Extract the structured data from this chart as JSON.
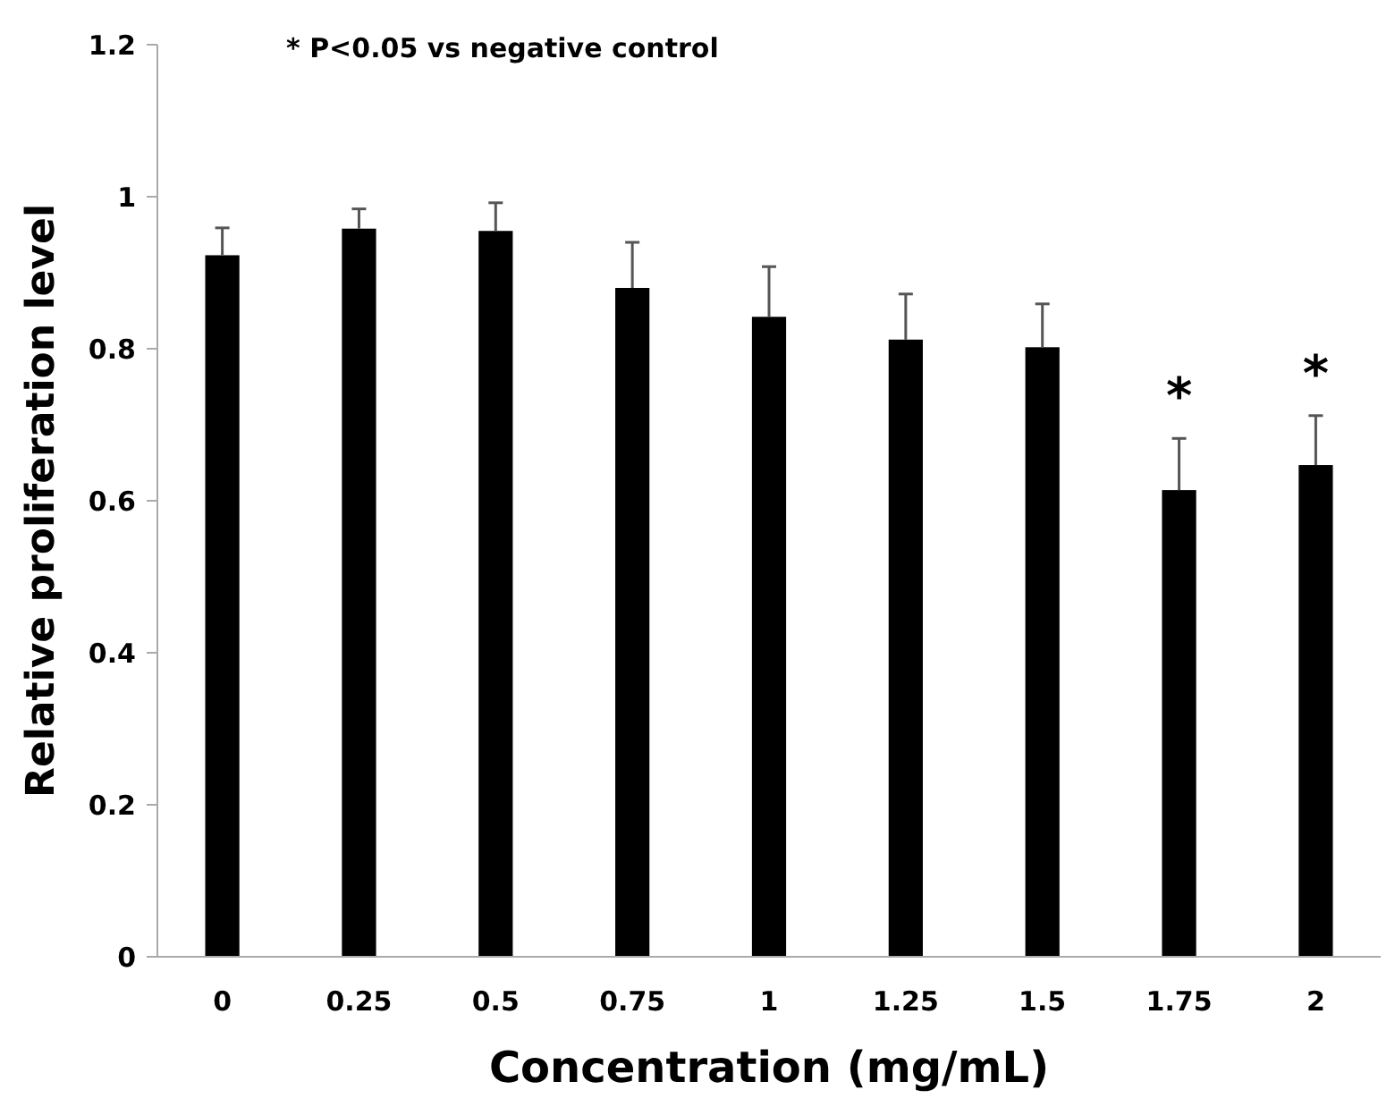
{
  "chart_data": {
    "type": "bar",
    "xlabel": "Concentration (mg/mL)",
    "ylabel": "Relative proliferation level",
    "categories": [
      "0",
      "0.25",
      "0.5",
      "0.75",
      "1",
      "1.25",
      "1.5",
      "1.75",
      "2"
    ],
    "values": [
      0.923,
      0.958,
      0.955,
      0.88,
      0.842,
      0.812,
      0.802,
      0.614,
      0.647
    ],
    "errors": [
      0.036,
      0.026,
      0.037,
      0.06,
      0.066,
      0.06,
      0.057,
      0.068,
      0.065
    ],
    "color": "#000000",
    "ylim": [
      0,
      1.2
    ],
    "yticks": [
      0,
      0.2,
      0.4,
      0.6,
      0.8,
      1,
      1.2
    ],
    "annotations": [
      "* P<0.05 vs negative control",
      {
        "text": "*",
        "x": "1.75",
        "y": 0.682
      },
      {
        "text": "*",
        "x": "2",
        "y": 0.712
      }
    ]
  }
}
